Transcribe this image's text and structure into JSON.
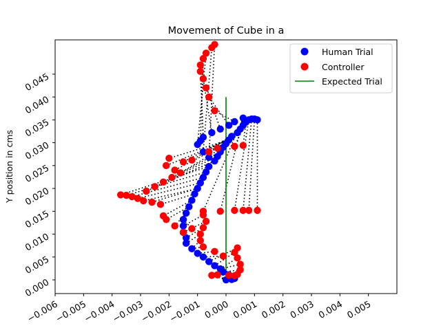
{
  "chart_data": {
    "type": "scatter",
    "title": "Movement of Cube in a",
    "xlabel": "",
    "ylabel": "Y position in cms",
    "xlim": [
      -0.006,
      0.006
    ],
    "ylim": [
      -0.003,
      0.0525
    ],
    "xticks": [
      -0.006,
      -0.005,
      -0.004,
      -0.003,
      -0.002,
      -0.001,
      0.0,
      0.001,
      0.002,
      0.003,
      0.004,
      0.005
    ],
    "xtick_labels": [
      "−0.006",
      "−0.005",
      "−0.004",
      "−0.003",
      "−0.002",
      "−0.001",
      "0.000",
      "0.001",
      "0.002",
      "0.003",
      "0.004",
      "0.005"
    ],
    "yticks": [
      0.0,
      0.005,
      0.01,
      0.015,
      0.02,
      0.025,
      0.03,
      0.035,
      0.04,
      0.045
    ],
    "ytick_labels": [
      "0.000",
      "0.005",
      "0.010",
      "0.015",
      "0.020",
      "0.025",
      "0.030",
      "0.035",
      "0.040",
      "0.045"
    ],
    "grid": false,
    "legend_position": "top-right",
    "legend": [
      {
        "label": "Human Trial",
        "kind": "marker",
        "color": "#0000ff"
      },
      {
        "label": "Controller",
        "kind": "marker",
        "color": "#ff0000"
      },
      {
        "label": "Expected Trial",
        "kind": "line",
        "color": "#008000"
      }
    ],
    "colors": {
      "human": "#0000ff",
      "controller": "#ff0000",
      "expected": "#008000",
      "links": "#000000"
    },
    "series": [
      {
        "name": "Human Trial",
        "marker": "circle",
        "color": "#0000ff",
        "points": [
          [
            0.0,
            0.0
          ],
          [
            0.0002,
            0.0001
          ],
          [
            0.0003,
            0.0003
          ],
          [
            0.0001,
            0.0011
          ],
          [
            -0.0001,
            0.0017
          ],
          [
            -0.0002,
            0.0024
          ],
          [
            -0.0004,
            0.0031
          ],
          [
            -0.0006,
            0.004
          ],
          [
            -0.0008,
            0.005
          ],
          [
            -0.001,
            0.0058
          ],
          [
            -0.0012,
            0.0068
          ],
          [
            -0.0014,
            0.008
          ],
          [
            -0.0014,
            0.0092
          ],
          [
            -0.0015,
            0.0104
          ],
          [
            -0.0015,
            0.0118
          ],
          [
            -0.0015,
            0.0132
          ],
          [
            -0.0014,
            0.0146
          ],
          [
            -0.0013,
            0.016
          ],
          [
            -0.0012,
            0.0174
          ],
          [
            -0.0011,
            0.0188
          ],
          [
            -0.001,
            0.02
          ],
          [
            -0.0009,
            0.0212
          ],
          [
            -0.0008,
            0.0224
          ],
          [
            -0.0007,
            0.0236
          ],
          [
            -0.0006,
            0.0248
          ],
          [
            -0.0004,
            0.026
          ],
          [
            -0.0003,
            0.027
          ],
          [
            -0.0002,
            0.028
          ],
          [
            -0.0001,
            0.029
          ],
          [
            0.0,
            0.0298
          ],
          [
            0.0001,
            0.0306
          ],
          [
            0.0002,
            0.0314
          ],
          [
            0.0004,
            0.0322
          ],
          [
            0.0005,
            0.033
          ],
          [
            0.0006,
            0.0338
          ],
          [
            0.0007,
            0.0345
          ],
          [
            0.0008,
            0.035
          ],
          [
            0.0009,
            0.0352
          ],
          [
            0.001,
            0.0352
          ],
          [
            0.0011,
            0.035
          ],
          [
            0.0006,
            0.0354
          ],
          [
            0.0003,
            0.0346
          ],
          [
            0.0001,
            0.0338
          ],
          [
            -0.0002,
            0.033
          ],
          [
            -0.0005,
            0.0322
          ],
          [
            -0.0008,
            0.0312
          ],
          [
            -0.0009,
            0.0304
          ],
          [
            -0.001,
            0.0296
          ],
          [
            -0.0008,
            0.028
          ],
          [
            -0.0006,
            0.0268
          ]
        ]
      },
      {
        "name": "Controller",
        "marker": "circle",
        "color": "#ff0000",
        "points": [
          [
            -0.0005,
            0.001
          ],
          [
            -0.0003,
            0.0011
          ],
          [
            0.0001,
            0.001
          ],
          [
            0.0003,
            0.0009
          ],
          [
            0.0004,
            0.0012
          ],
          [
            0.0005,
            0.0022
          ],
          [
            0.0005,
            0.0034
          ],
          [
            0.0004,
            0.0048
          ],
          [
            0.0003,
            0.006
          ],
          [
            0.0004,
            0.007
          ],
          [
            -0.0001,
            0.0052
          ],
          [
            -0.0004,
            0.0062
          ],
          [
            -0.0008,
            0.0072
          ],
          [
            -0.0009,
            0.0086
          ],
          [
            -0.0009,
            0.01
          ],
          [
            -0.0008,
            0.0114
          ],
          [
            -0.0007,
            0.0128
          ],
          [
            -0.0008,
            0.0142
          ],
          [
            -0.0012,
            0.0112
          ],
          [
            -0.0015,
            0.0104
          ],
          [
            -0.0018,
            0.0118
          ],
          [
            -0.0021,
            0.0132
          ],
          [
            -0.0022,
            0.014
          ],
          [
            -0.0023,
            0.0165
          ],
          [
            -0.0026,
            0.017
          ],
          [
            -0.0029,
            0.0173
          ],
          [
            -0.0031,
            0.0178
          ],
          [
            -0.0033,
            0.0182
          ],
          [
            -0.0035,
            0.0185
          ],
          [
            -0.0037,
            0.0186
          ],
          [
            -0.0028,
            0.0194
          ],
          [
            -0.0025,
            0.0204
          ],
          [
            -0.0022,
            0.0214
          ],
          [
            -0.0019,
            0.0224
          ],
          [
            -0.0016,
            0.0234
          ],
          [
            -0.0018,
            0.024
          ],
          [
            -0.0021,
            0.025
          ],
          [
            -0.002,
            0.0266
          ],
          [
            -0.0015,
            0.0258
          ],
          [
            -0.0012,
            0.0262
          ],
          [
            -0.0006,
            0.028
          ],
          [
            -0.0003,
            0.0288
          ],
          [
            0.0003,
            0.0292
          ],
          [
            0.0006,
            0.0294
          ],
          [
            0.0003,
            0.0152
          ],
          [
            0.0006,
            0.0152
          ],
          [
            0.0008,
            0.0152
          ],
          [
            0.0011,
            0.0152
          ],
          [
            -0.0002,
            0.015
          ],
          [
            -0.0008,
            0.015
          ],
          [
            -0.0004,
            0.037
          ],
          [
            -0.0006,
            0.04
          ],
          [
            -0.0007,
            0.042
          ],
          [
            -0.0008,
            0.044
          ],
          [
            -0.0009,
            0.0456
          ],
          [
            -0.0009,
            0.047
          ],
          [
            -0.0008,
            0.0484
          ],
          [
            -0.0007,
            0.0496
          ],
          [
            -0.0005,
            0.0508
          ],
          [
            -0.0004,
            0.0515
          ]
        ]
      },
      {
        "name": "Expected Trial",
        "kind": "line",
        "color": "#008000",
        "points": [
          [
            0.0,
            0.0
          ],
          [
            0.0,
            0.01
          ],
          [
            0.0,
            0.02
          ],
          [
            0.0,
            0.03
          ],
          [
            0.0,
            0.04
          ]
        ]
      }
    ]
  }
}
